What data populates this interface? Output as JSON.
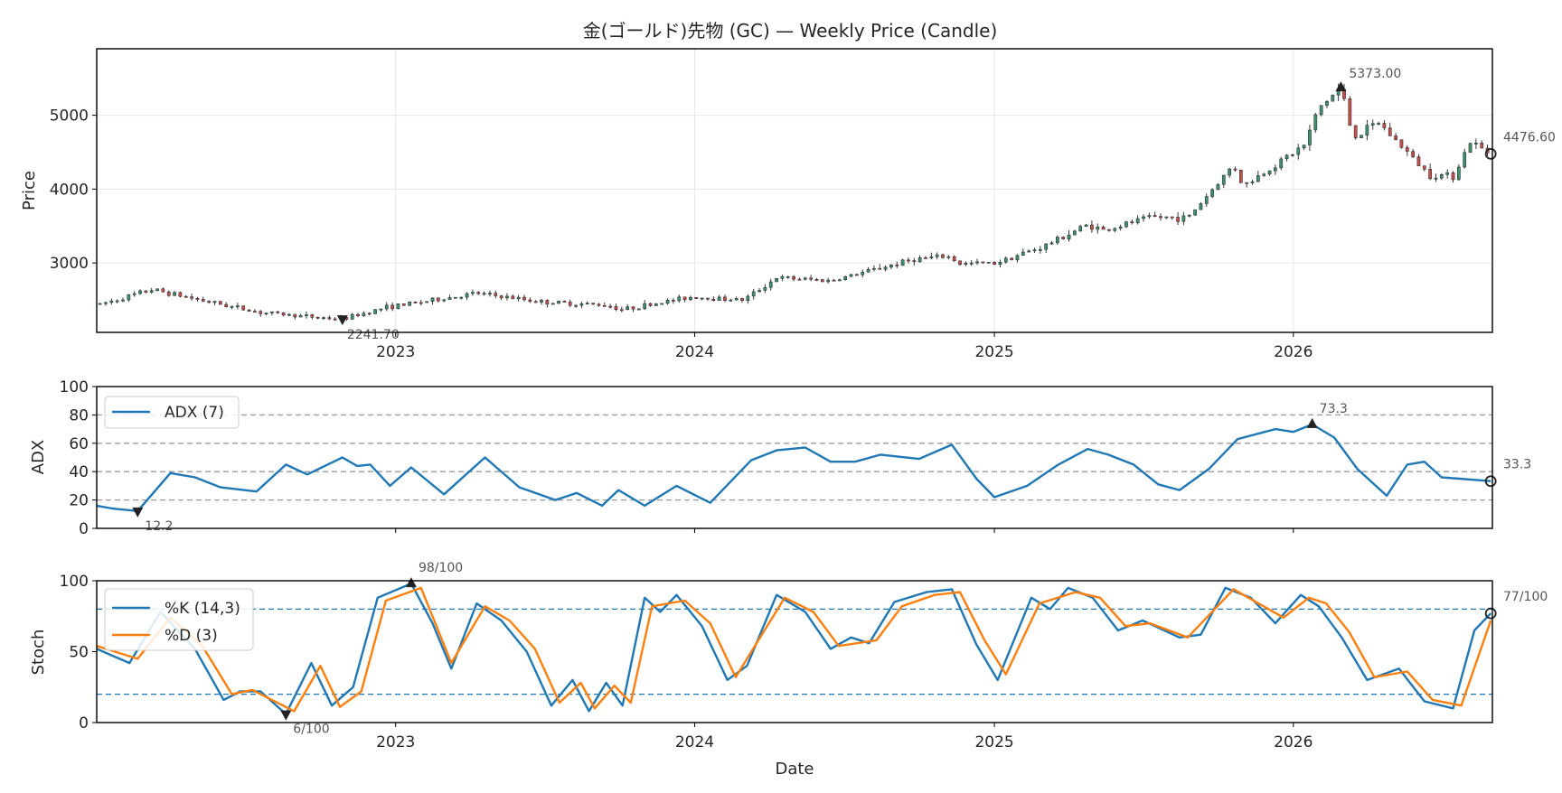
{
  "chart_data": [
    {
      "type": "candlestick",
      "title": "金(ゴールド)先物 (GC) — Weekly Price (Candle)",
      "ylabel": "Price",
      "ylim": [
        2060,
        5900
      ],
      "yticks": [
        3000,
        4000,
        5000
      ],
      "x_range": [
        "2022-01-01",
        "2026-09-01"
      ],
      "xticks": [
        "2023",
        "2024",
        "2025",
        "2026"
      ],
      "up_color": "#3f8f6b",
      "down_color": "#c0504d",
      "anchors": [
        [
          "2022-01-05",
          2440
        ],
        [
          "2022-03-10",
          2640
        ],
        [
          "2022-05-15",
          2480
        ],
        [
          "2022-07-20",
          2330
        ],
        [
          "2022-10-01",
          2260
        ],
        [
          "2022-10-28",
          2241.7
        ],
        [
          "2022-12-20",
          2400
        ],
        [
          "2023-02-01",
          2470
        ],
        [
          "2023-04-10",
          2590
        ],
        [
          "2023-06-30",
          2470
        ],
        [
          "2023-09-15",
          2430
        ],
        [
          "2023-10-05",
          2370
        ],
        [
          "2023-12-28",
          2540
        ],
        [
          "2024-03-01",
          2500
        ],
        [
          "2024-04-10",
          2800
        ],
        [
          "2024-06-15",
          2760
        ],
        [
          "2024-09-25",
          3050
        ],
        [
          "2024-11-05",
          3090
        ],
        [
          "2024-11-20",
          2990
        ],
        [
          "2025-01-01",
          3000
        ],
        [
          "2025-03-01",
          3220
        ],
        [
          "2025-04-25",
          3520
        ],
        [
          "2025-05-15",
          3440
        ],
        [
          "2025-07-10",
          3620
        ],
        [
          "2025-08-25",
          3610
        ],
        [
          "2025-10-20",
          4330
        ],
        [
          "2025-11-01",
          4040
        ],
        [
          "2026-01-15",
          4600
        ],
        [
          "2026-02-01",
          5100
        ],
        [
          "2026-02-28",
          5373
        ],
        [
          "2026-03-15",
          4700
        ],
        [
          "2026-04-15",
          4900
        ],
        [
          "2026-06-15",
          4200
        ],
        [
          "2026-07-15",
          4180
        ],
        [
          "2026-08-05",
          4640
        ],
        [
          "2026-08-30",
          4476.6
        ]
      ],
      "annotations": [
        {
          "date": "2022-10-28",
          "value": 2241.7,
          "label": "2241.70",
          "marker": "min"
        },
        {
          "date": "2026-02-28",
          "value": 5373.0,
          "label": "5373.00",
          "marker": "max"
        },
        {
          "date": "2026-08-30",
          "value": 4476.6,
          "label": "4476.60",
          "marker": "last"
        }
      ],
      "grid": true
    },
    {
      "type": "line",
      "ylabel": "ADX",
      "ylim": [
        0,
        100
      ],
      "yticks": [
        0,
        20,
        40,
        60,
        80,
        100
      ],
      "reference_lines": [
        20,
        40,
        60,
        80
      ],
      "legend": "upper-left",
      "series": [
        {
          "name": "ADX (7)",
          "color": "#1f77b4",
          "points": [
            [
              "2022-01-01",
              16
            ],
            [
              "2022-01-20",
              14
            ],
            [
              "2022-02-20",
              12.2
            ],
            [
              "2022-04-01",
              39
            ],
            [
              "2022-05-01",
              36
            ],
            [
              "2022-06-01",
              29
            ],
            [
              "2022-07-15",
              26
            ],
            [
              "2022-08-20",
              45
            ],
            [
              "2022-09-15",
              38
            ],
            [
              "2022-10-28",
              50
            ],
            [
              "2022-11-15",
              44
            ],
            [
              "2022-12-01",
              45
            ],
            [
              "2022-12-25",
              30
            ],
            [
              "2023-01-20",
              43
            ],
            [
              "2023-03-01",
              24
            ],
            [
              "2023-04-20",
              50
            ],
            [
              "2023-06-01",
              29
            ],
            [
              "2023-07-15",
              20
            ],
            [
              "2023-08-10",
              25
            ],
            [
              "2023-09-10",
              16
            ],
            [
              "2023-09-30",
              27
            ],
            [
              "2023-11-01",
              16
            ],
            [
              "2023-12-10",
              30
            ],
            [
              "2024-01-20",
              18
            ],
            [
              "2024-03-10",
              48
            ],
            [
              "2024-04-10",
              55
            ],
            [
              "2024-05-15",
              57
            ],
            [
              "2024-06-15",
              47
            ],
            [
              "2024-07-15",
              47
            ],
            [
              "2024-08-15",
              52
            ],
            [
              "2024-10-01",
              49
            ],
            [
              "2024-11-10",
              59
            ],
            [
              "2024-12-10",
              35
            ],
            [
              "2025-01-01",
              22
            ],
            [
              "2025-02-10",
              30
            ],
            [
              "2025-03-20",
              45
            ],
            [
              "2025-04-25",
              56
            ],
            [
              "2025-05-20",
              52
            ],
            [
              "2025-06-20",
              45
            ],
            [
              "2025-07-20",
              31
            ],
            [
              "2025-08-15",
              27
            ],
            [
              "2025-09-20",
              42
            ],
            [
              "2025-10-25",
              63
            ],
            [
              "2025-12-10",
              70
            ],
            [
              "2026-01-01",
              68
            ],
            [
              "2026-01-24",
              73.3
            ],
            [
              "2026-02-20",
              64
            ],
            [
              "2026-03-20",
              42
            ],
            [
              "2026-04-25",
              23
            ],
            [
              "2026-05-20",
              45
            ],
            [
              "2026-06-10",
              47
            ],
            [
              "2026-07-01",
              36
            ],
            [
              "2026-08-30",
              33.3
            ]
          ]
        }
      ],
      "annotations": [
        {
          "date": "2022-02-20",
          "value": 12.2,
          "label": "12.2",
          "marker": "min"
        },
        {
          "date": "2026-01-24",
          "value": 73.3,
          "label": "73.3",
          "marker": "max"
        },
        {
          "date": "2026-08-30",
          "value": 33.3,
          "label": "33.3",
          "marker": "last"
        }
      ]
    },
    {
      "type": "line",
      "ylabel": "Stoch",
      "xlabel": "Date",
      "ylim": [
        0,
        100
      ],
      "yticks": [
        0,
        50,
        100
      ],
      "reference_lines": [
        20,
        80
      ],
      "legend": "upper-left",
      "series": [
        {
          "name": "%K (14,3)",
          "color": "#1f77b4",
          "points": [
            [
              "2022-01-01",
              52
            ],
            [
              "2022-02-10",
              42
            ],
            [
              "2022-03-20",
              78
            ],
            [
              "2022-05-01",
              52
            ],
            [
              "2022-06-05",
              16
            ],
            [
              "2022-06-25",
              22
            ],
            [
              "2022-07-20",
              22
            ],
            [
              "2022-08-20",
              6
            ],
            [
              "2022-09-20",
              42
            ],
            [
              "2022-10-15",
              12
            ],
            [
              "2022-11-10",
              25
            ],
            [
              "2022-12-10",
              88
            ],
            [
              "2023-01-20",
              98
            ],
            [
              "2023-02-15",
              70
            ],
            [
              "2023-03-10",
              38
            ],
            [
              "2023-04-10",
              84
            ],
            [
              "2023-05-10",
              72
            ],
            [
              "2023-06-10",
              50
            ],
            [
              "2023-07-10",
              12
            ],
            [
              "2023-08-05",
              30
            ],
            [
              "2023-08-25",
              8
            ],
            [
              "2023-09-15",
              28
            ],
            [
              "2023-10-05",
              12
            ],
            [
              "2023-11-01",
              88
            ],
            [
              "2023-11-20",
              78
            ],
            [
              "2023-12-10",
              90
            ],
            [
              "2024-01-10",
              68
            ],
            [
              "2024-02-10",
              30
            ],
            [
              "2024-03-05",
              40
            ],
            [
              "2024-04-10",
              90
            ],
            [
              "2024-05-15",
              78
            ],
            [
              "2024-06-15",
              52
            ],
            [
              "2024-07-10",
              60
            ],
            [
              "2024-08-01",
              56
            ],
            [
              "2024-09-01",
              85
            ],
            [
              "2024-10-10",
              92
            ],
            [
              "2024-11-10",
              94
            ],
            [
              "2024-12-10",
              55
            ],
            [
              "2025-01-05",
              30
            ],
            [
              "2025-02-15",
              88
            ],
            [
              "2025-03-10",
              80
            ],
            [
              "2025-04-01",
              95
            ],
            [
              "2025-05-01",
              88
            ],
            [
              "2025-06-01",
              65
            ],
            [
              "2025-07-01",
              72
            ],
            [
              "2025-08-15",
              60
            ],
            [
              "2025-09-10",
              62
            ],
            [
              "2025-10-10",
              95
            ],
            [
              "2025-11-10",
              88
            ],
            [
              "2025-12-10",
              70
            ],
            [
              "2026-01-10",
              90
            ],
            [
              "2026-02-01",
              82
            ],
            [
              "2026-03-01",
              60
            ],
            [
              "2026-04-01",
              30
            ],
            [
              "2026-05-10",
              38
            ],
            [
              "2026-06-10",
              15
            ],
            [
              "2026-07-15",
              10
            ],
            [
              "2026-08-10",
              65
            ],
            [
              "2026-08-30",
              77
            ]
          ]
        },
        {
          "name": "%D (3)",
          "color": "#ff7f0e",
          "points": [
            [
              "2022-01-01",
              54
            ],
            [
              "2022-02-20",
              45
            ],
            [
              "2022-04-01",
              74
            ],
            [
              "2022-05-10",
              54
            ],
            [
              "2022-06-15",
              20
            ],
            [
              "2022-07-10",
              23
            ],
            [
              "2022-08-30",
              8
            ],
            [
              "2022-10-01",
              40
            ],
            [
              "2022-10-25",
              11
            ],
            [
              "2022-11-20",
              22
            ],
            [
              "2022-12-20",
              86
            ],
            [
              "2023-02-01",
              95
            ],
            [
              "2023-03-10",
              42
            ],
            [
              "2023-04-20",
              82
            ],
            [
              "2023-05-20",
              72
            ],
            [
              "2023-06-20",
              52
            ],
            [
              "2023-07-20",
              14
            ],
            [
              "2023-08-15",
              28
            ],
            [
              "2023-09-01",
              10
            ],
            [
              "2023-09-25",
              26
            ],
            [
              "2023-10-15",
              14
            ],
            [
              "2023-11-10",
              82
            ],
            [
              "2023-12-20",
              86
            ],
            [
              "2024-01-20",
              70
            ],
            [
              "2024-02-20",
              32
            ],
            [
              "2024-04-20",
              88
            ],
            [
              "2024-05-25",
              78
            ],
            [
              "2024-06-25",
              54
            ],
            [
              "2024-08-10",
              58
            ],
            [
              "2024-09-10",
              82
            ],
            [
              "2024-10-20",
              90
            ],
            [
              "2024-11-20",
              92
            ],
            [
              "2024-12-20",
              58
            ],
            [
              "2025-01-15",
              34
            ],
            [
              "2025-02-25",
              84
            ],
            [
              "2025-04-10",
              92
            ],
            [
              "2025-05-10",
              88
            ],
            [
              "2025-06-10",
              68
            ],
            [
              "2025-07-10",
              70
            ],
            [
              "2025-08-25",
              60
            ],
            [
              "2025-10-20",
              94
            ],
            [
              "2025-12-20",
              74
            ],
            [
              "2026-01-20",
              88
            ],
            [
              "2026-02-10",
              84
            ],
            [
              "2026-03-10",
              64
            ],
            [
              "2026-04-10",
              32
            ],
            [
              "2026-05-20",
              36
            ],
            [
              "2026-06-20",
              16
            ],
            [
              "2026-07-25",
              12
            ],
            [
              "2026-08-30",
              72
            ]
          ]
        }
      ],
      "annotations": [
        {
          "date": "2022-08-20",
          "value": 6,
          "label": "6/100",
          "marker": "min"
        },
        {
          "date": "2023-01-20",
          "value": 98,
          "label": "98/100",
          "marker": "max"
        },
        {
          "date": "2026-08-30",
          "value": 77,
          "label": "77/100",
          "marker": "last"
        }
      ]
    }
  ]
}
